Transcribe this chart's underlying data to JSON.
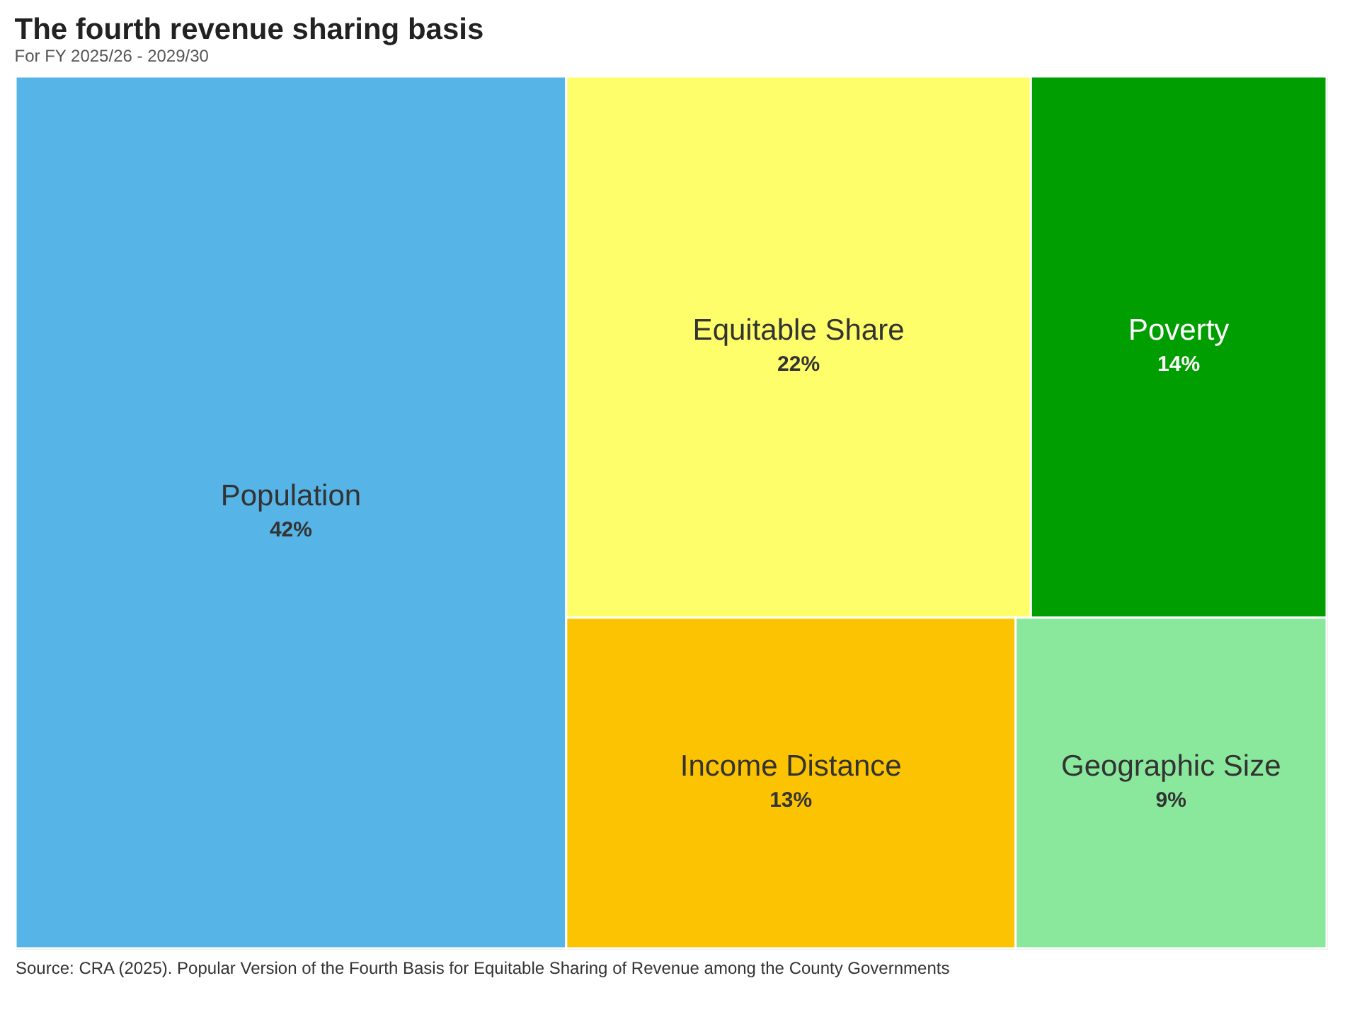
{
  "chart_data": {
    "type": "other",
    "title": "The fourth revenue sharing basis",
    "subtitle": "For FY 2025/26 - 2029/30",
    "categories": [
      "Population",
      "Equitable Share",
      "Poverty",
      "Income Distance",
      "Geographic Size"
    ],
    "values": [
      42,
      22,
      14,
      13,
      9
    ],
    "colors": [
      "#56b4e6",
      "#fefe6a",
      "#009e00",
      "#fcc302",
      "#8ae89c"
    ],
    "value_labels": [
      "42%",
      "22%",
      "14%",
      "13%",
      "9%"
    ],
    "annotations": [
      "Source: CRA (2025). Popular Version of the Fourth Basis for Equitable Sharing of Revenue among the County Governments"
    ]
  }
}
